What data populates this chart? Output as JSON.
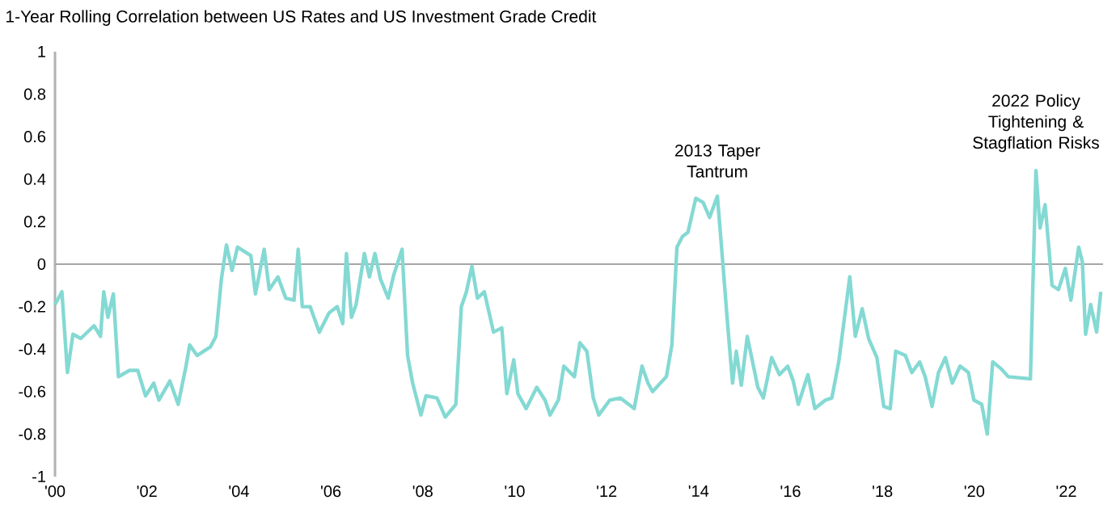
{
  "chart_data": {
    "type": "line",
    "title": "1-Year Rolling Correlation between US Rates and US Investment Grade Credit",
    "x": [
      2000.0,
      2000.15,
      2000.27,
      2000.39,
      2000.56,
      2000.85,
      2000.99,
      2001.06,
      2001.15,
      2001.27,
      2001.38,
      2001.62,
      2001.8,
      2001.97,
      2002.15,
      2002.26,
      2002.5,
      2002.68,
      2002.85,
      2002.93,
      2003.09,
      2003.38,
      2003.5,
      2003.62,
      2003.73,
      2003.85,
      2003.97,
      2004.26,
      2004.36,
      2004.55,
      2004.66,
      2004.85,
      2005.02,
      2005.2,
      2005.29,
      2005.38,
      2005.55,
      2005.75,
      2005.96,
      2006.14,
      2006.26,
      2006.34,
      2006.45,
      2006.55,
      2006.73,
      2006.84,
      2006.96,
      2007.08,
      2007.25,
      2007.37,
      2007.55,
      2007.67,
      2007.78,
      2007.96,
      2008.07,
      2008.31,
      2008.49,
      2008.72,
      2008.84,
      2008.95,
      2009.07,
      2009.19,
      2009.34,
      2009.54,
      2009.72,
      2009.83,
      2009.98,
      2010.07,
      2010.25,
      2010.48,
      2010.66,
      2010.77,
      2010.95,
      2011.07,
      2011.3,
      2011.42,
      2011.57,
      2011.71,
      2011.83,
      2012.07,
      2012.3,
      2012.6,
      2012.77,
      2012.9,
      2013.0,
      2013.3,
      2013.42,
      2013.53,
      2013.65,
      2013.77,
      2013.94,
      2014.1,
      2014.24,
      2014.41,
      2014.53,
      2014.62,
      2014.74,
      2014.82,
      2014.93,
      2015.06,
      2015.29,
      2015.41,
      2015.59,
      2015.76,
      2015.94,
      2016.06,
      2016.17,
      2016.38,
      2016.53,
      2016.76,
      2016.9,
      2017.05,
      2017.29,
      2017.41,
      2017.56,
      2017.7,
      2017.88,
      2018.03,
      2018.17,
      2018.29,
      2018.5,
      2018.64,
      2018.81,
      2018.93,
      2019.08,
      2019.22,
      2019.37,
      2019.52,
      2019.69,
      2019.87,
      2019.99,
      2020.16,
      2020.28,
      2020.4,
      2020.57,
      2020.74,
      2021.22,
      2021.34,
      2021.43,
      2021.54,
      2021.69,
      2021.83,
      2021.98,
      2022.1,
      2022.27,
      2022.35,
      2022.42,
      2022.53,
      2022.66,
      2022.75
    ],
    "series": [
      {
        "color": "#84d9d3",
        "values": [
          -0.19,
          -0.13,
          -0.51,
          -0.33,
          -0.35,
          -0.29,
          -0.34,
          -0.13,
          -0.25,
          -0.14,
          -0.53,
          -0.5,
          -0.5,
          -0.62,
          -0.56,
          -0.64,
          -0.55,
          -0.66,
          -0.48,
          -0.38,
          -0.43,
          -0.39,
          -0.34,
          -0.07,
          0.09,
          -0.03,
          0.08,
          0.04,
          -0.14,
          0.07,
          -0.12,
          -0.06,
          -0.16,
          -0.17,
          0.07,
          -0.2,
          -0.2,
          -0.32,
          -0.23,
          -0.2,
          -0.28,
          0.05,
          -0.25,
          -0.19,
          0.05,
          -0.06,
          0.05,
          -0.07,
          -0.16,
          -0.05,
          0.07,
          -0.43,
          -0.56,
          -0.71,
          -0.62,
          -0.63,
          -0.72,
          -0.66,
          -0.2,
          -0.13,
          -0.01,
          -0.16,
          -0.13,
          -0.32,
          -0.3,
          -0.61,
          -0.45,
          -0.61,
          -0.68,
          -0.58,
          -0.64,
          -0.71,
          -0.64,
          -0.48,
          -0.53,
          -0.37,
          -0.41,
          -0.63,
          -0.71,
          -0.64,
          -0.63,
          -0.68,
          -0.48,
          -0.56,
          -0.6,
          -0.53,
          -0.38,
          0.08,
          0.13,
          0.15,
          0.31,
          0.29,
          0.22,
          0.32,
          0.0,
          -0.25,
          -0.56,
          -0.41,
          -0.57,
          -0.34,
          -0.58,
          -0.63,
          -0.44,
          -0.52,
          -0.48,
          -0.55,
          -0.66,
          -0.52,
          -0.68,
          -0.64,
          -0.63,
          -0.46,
          -0.06,
          -0.34,
          -0.21,
          -0.35,
          -0.44,
          -0.67,
          -0.68,
          -0.41,
          -0.43,
          -0.51,
          -0.46,
          -0.53,
          -0.67,
          -0.51,
          -0.44,
          -0.56,
          -0.48,
          -0.51,
          -0.64,
          -0.66,
          -0.8,
          -0.46,
          -0.49,
          -0.53,
          -0.54,
          0.44,
          0.17,
          0.28,
          -0.1,
          -0.12,
          -0.02,
          -0.17,
          0.08,
          0.01,
          -0.33,
          -0.19,
          -0.32,
          -0.13
        ]
      }
    ],
    "xlim": [
      2000,
      2022.8
    ],
    "xticks": [
      {
        "value": 2000,
        "label": "'00"
      },
      {
        "value": 2002,
        "label": "'02"
      },
      {
        "value": 2004,
        "label": "'04"
      },
      {
        "value": 2006,
        "label": "'06"
      },
      {
        "value": 2008,
        "label": "'08"
      },
      {
        "value": 2010,
        "label": "'10"
      },
      {
        "value": 2012,
        "label": "'12"
      },
      {
        "value": 2014,
        "label": "'14"
      },
      {
        "value": 2016,
        "label": "'16"
      },
      {
        "value": 2018,
        "label": "'18"
      },
      {
        "value": 2020,
        "label": "'20"
      },
      {
        "value": 2022,
        "label": "'22"
      }
    ],
    "ylim": [
      -1,
      1
    ],
    "yticks": [
      1,
      0.8,
      0.6,
      0.4,
      0.2,
      0,
      -0.2,
      -0.4,
      -0.6,
      -0.8,
      -1
    ],
    "ref_lines": [
      {
        "axis": "y",
        "value": 0,
        "color": "#a6a6a6"
      }
    ],
    "annotations": [
      {
        "text": "2013 Taper Tantrum",
        "x": 2014.41,
        "y": 0.32
      },
      {
        "text": "2022 Policy Tightening & Stagflation Risks",
        "x": 2021.34,
        "y": 0.44
      }
    ],
    "grid": false,
    "legend": false,
    "marker": "none",
    "line_style": "solid"
  }
}
